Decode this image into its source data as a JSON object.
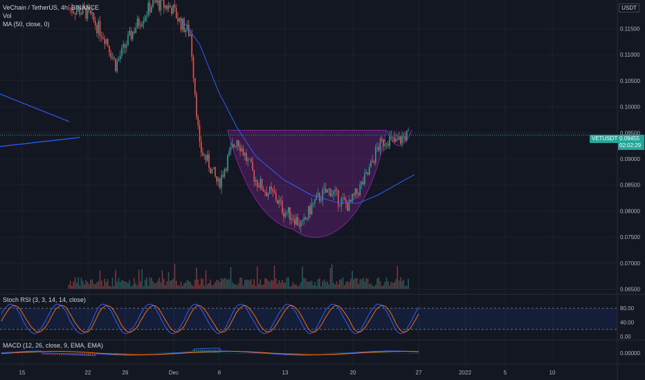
{
  "header": {
    "symbol_line": "VeChain / TetherUS, 4h, BINANCE",
    "vol_label": "Vol",
    "ma_label": "MA (50, close, 0)",
    "currency_button": "USDT"
  },
  "price_tag": {
    "symbol": "VETUSDT",
    "price": "0.09455",
    "countdown": "02:02:29"
  },
  "stoch_label": "Stoch RSI (3, 3, 14, 14, close)",
  "macd_label": "MACD (12, 26, close, 9, EMA, EMA)",
  "colors": {
    "up": "#26a69a",
    "down": "#ef5350",
    "ma": "#2962ff",
    "k": "#2962ff",
    "d": "#ff6d00",
    "pattern": "#9c27b0"
  },
  "chart_data": [
    {
      "type": "candlestick",
      "name": "VETUSDT price",
      "y_ticks": [
        "0.11500",
        "0.11000",
        "0.10500",
        "0.10000",
        "0.09500",
        "0.09000",
        "0.08500",
        "0.08000",
        "0.07500",
        "0.07000",
        "0.06500"
      ],
      "x_ticks": [
        "15",
        "22",
        "26",
        "Dec",
        "6",
        "13",
        "20",
        "27",
        "2022",
        "5",
        "10"
      ],
      "ylim": [
        0.064,
        0.1205
      ],
      "close_points": [
        [
          "Nov 20",
          0.119
        ],
        [
          "Nov 22",
          0.118
        ],
        [
          "Nov 24",
          0.113
        ],
        [
          "Nov 25",
          0.108
        ],
        [
          "Nov 27",
          0.115
        ],
        [
          "Nov 29",
          0.12
        ],
        [
          "Dec 1",
          0.119
        ],
        [
          "Dec 2",
          0.116
        ],
        [
          "Dec 3",
          0.114
        ],
        [
          "Dec 4",
          0.092
        ],
        [
          "Dec 5",
          0.089
        ],
        [
          "Dec 6",
          0.085
        ],
        [
          "Dec 7",
          0.09
        ],
        [
          "Dec 8",
          0.094
        ],
        [
          "Dec 9",
          0.09
        ],
        [
          "Dec 10",
          0.086
        ],
        [
          "Dec 11",
          0.084
        ],
        [
          "Dec 12",
          0.083
        ],
        [
          "Dec 13",
          0.08
        ],
        [
          "Dec 14",
          0.079
        ],
        [
          "Dec 15",
          0.077
        ],
        [
          "Dec 16",
          0.081
        ],
        [
          "Dec 17",
          0.083
        ],
        [
          "Dec 18",
          0.084
        ],
        [
          "Dec 19",
          0.082
        ],
        [
          "Dec 20",
          0.081
        ],
        [
          "Dec 21",
          0.084
        ],
        [
          "Dec 22",
          0.087
        ],
        [
          "Dec 23",
          0.092
        ],
        [
          "Dec 24",
          0.094
        ],
        [
          "Dec 25",
          0.093
        ],
        [
          "Dec 26",
          0.0945
        ]
      ],
      "ma50_points": [
        [
          "Dec 2",
          0.117
        ],
        [
          "Dec 4",
          0.112
        ],
        [
          "Dec 6",
          0.103
        ],
        [
          "Dec 8",
          0.096
        ],
        [
          "Dec 10",
          0.0905
        ],
        [
          "Dec 13",
          0.086
        ],
        [
          "Dec 16",
          0.083
        ],
        [
          "Dec 19",
          0.0815
        ],
        [
          "Dec 21",
          0.0815
        ],
        [
          "Dec 23",
          0.083
        ],
        [
          "Dec 25",
          0.085
        ],
        [
          "Dec 27",
          0.087
        ]
      ],
      "pattern": "cup and handle",
      "neckline": 0.0955,
      "cup_low": 0.0765,
      "last_price": 0.09455
    },
    {
      "type": "bar",
      "name": "Vol"
    },
    {
      "type": "line",
      "name": "Stoch RSI",
      "y_ticks": [
        "80.00",
        "40.00",
        "0.00"
      ],
      "bands": [
        20,
        80
      ],
      "ylim": [
        0,
        100
      ]
    },
    {
      "type": "line",
      "name": "MACD",
      "y_ticks": [
        "0.00000"
      ]
    }
  ]
}
